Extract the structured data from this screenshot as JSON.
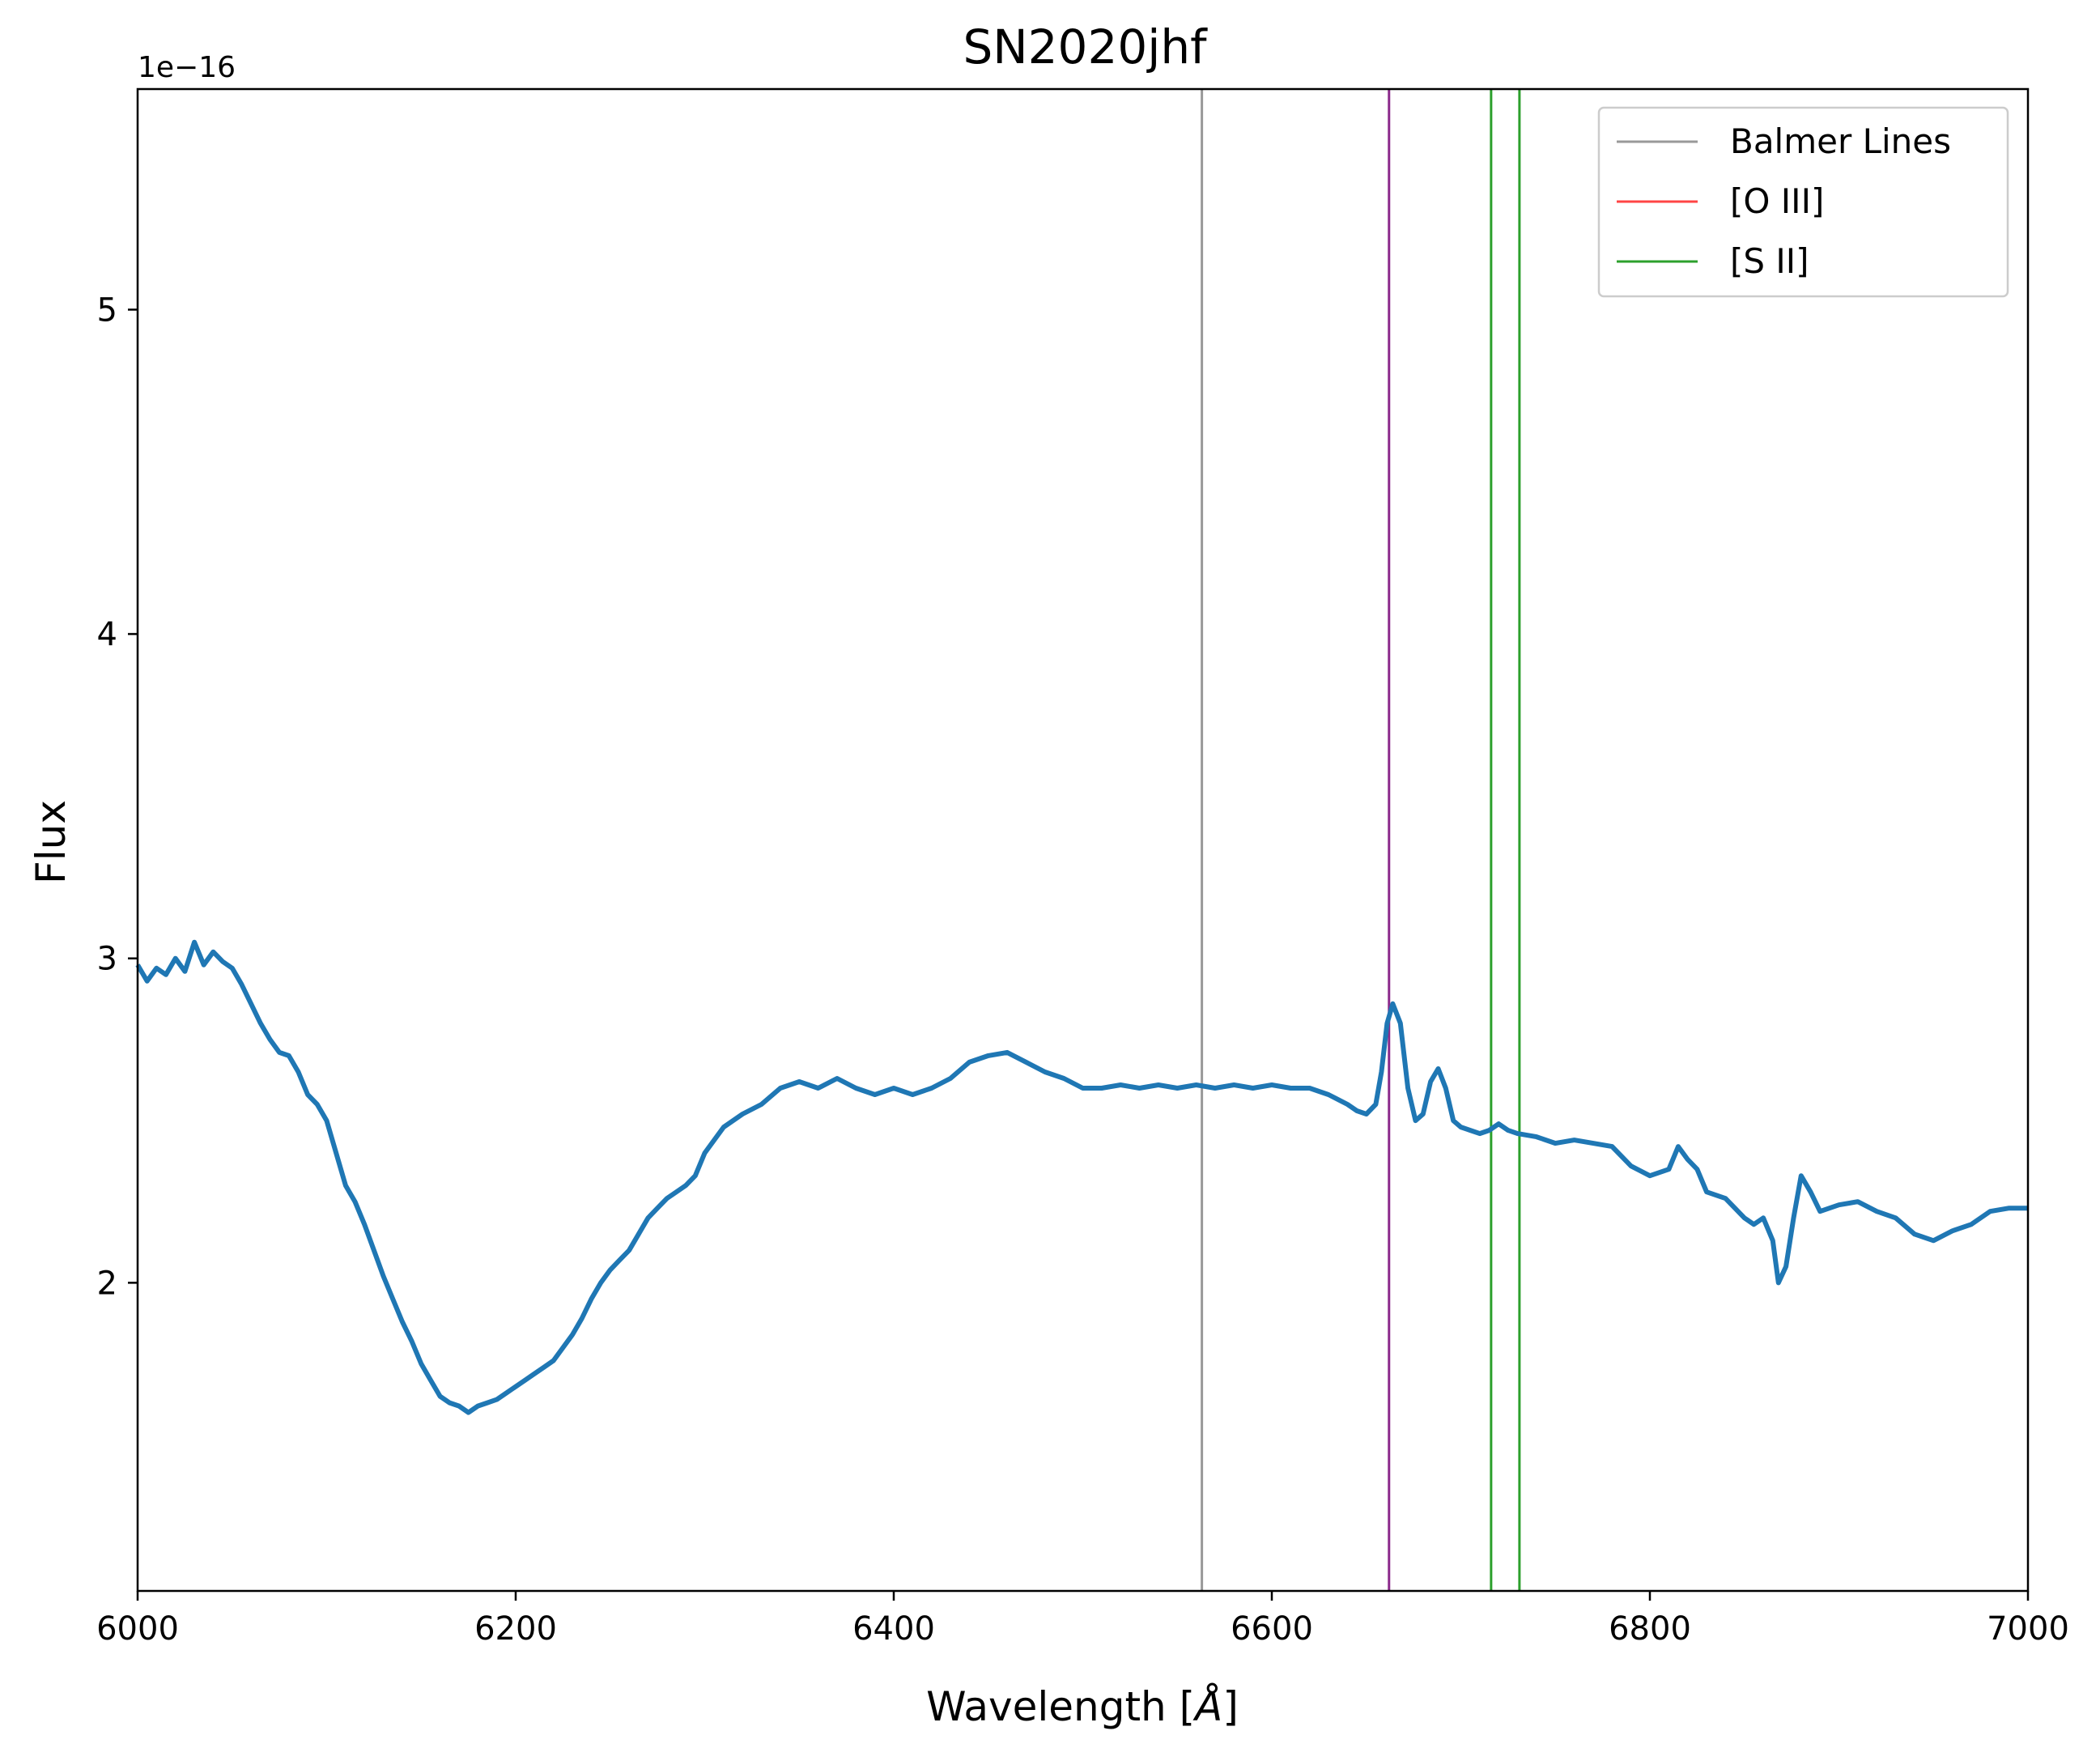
{
  "chart_data": {
    "type": "line",
    "title": "SN2020jhf",
    "xlabel": "Wavelength [",
    "xlabel_unit": "Å",
    "xlabel_close": "]",
    "ylabel": "Flux",
    "y_offset_label": "1e−16",
    "xlim": [
      6000,
      7000
    ],
    "ylim": [
      1.05,
      5.68
    ],
    "x_ticks": [
      6000,
      6200,
      6400,
      6600,
      6800,
      7000
    ],
    "x_tick_labels": [
      "6000",
      "6200",
      "6400",
      "6600",
      "6800",
      "7000"
    ],
    "y_ticks": [
      2,
      3,
      4,
      5
    ],
    "y_tick_labels": [
      "2",
      "3",
      "4",
      "5"
    ],
    "grid": false,
    "legend_position": "top-right",
    "vertical_lines": [
      {
        "x": 6563,
        "color": "#999999",
        "legend": "Balmer Lines"
      },
      {
        "x": 6662,
        "color": "#8b2a8b",
        "legend": ""
      },
      {
        "x": 6716,
        "color": "#2ca02c",
        "legend": ""
      },
      {
        "x": 6731,
        "color": "#2ca02c",
        "legend": ""
      }
    ],
    "legend": [
      {
        "label": "Balmer Lines",
        "color": "#999999"
      },
      {
        "label": "[O III]",
        "color": "#ff4444"
      },
      {
        "label": "[S II]",
        "color": "#2ca02c"
      }
    ],
    "series": [
      {
        "color": "#1f77b4",
        "x": [
          6000,
          6005,
          6010,
          6015,
          6020,
          6025,
          6030,
          6035,
          6040,
          6045,
          6050,
          6055,
          6060,
          6065,
          6070,
          6075,
          6080,
          6085,
          6090,
          6095,
          6100,
          6105,
          6110,
          6115,
          6120,
          6125,
          6130,
          6135,
          6140,
          6145,
          6150,
          6155,
          6160,
          6165,
          6170,
          6175,
          6180,
          6185,
          6190,
          6195,
          6200,
          6205,
          6210,
          6215,
          6220,
          6225,
          6230,
          6235,
          6240,
          6245,
          6250,
          6255,
          6260,
          6265,
          6270,
          6275,
          6280,
          6285,
          6290,
          6295,
          6300,
          6310,
          6320,
          6330,
          6340,
          6350,
          6360,
          6370,
          6380,
          6390,
          6400,
          6410,
          6420,
          6430,
          6440,
          6450,
          6460,
          6470,
          6480,
          6490,
          6500,
          6510,
          6520,
          6530,
          6540,
          6550,
          6560,
          6570,
          6580,
          6590,
          6600,
          6610,
          6620,
          6630,
          6640,
          6645,
          6650,
          6655,
          6658,
          6661,
          6664,
          6668,
          6672,
          6676,
          6680,
          6684,
          6688,
          6692,
          6696,
          6700,
          6705,
          6710,
          6715,
          6720,
          6725,
          6730,
          6740,
          6750,
          6760,
          6770,
          6780,
          6790,
          6800,
          6810,
          6815,
          6820,
          6825,
          6830,
          6840,
          6850,
          6855,
          6860,
          6865,
          6868,
          6872,
          6876,
          6880,
          6885,
          6890,
          6900,
          6910,
          6920,
          6930,
          6940,
          6950,
          6960,
          6970,
          6980,
          6990,
          7000
        ],
        "values": [
          2.98,
          2.93,
          2.97,
          2.95,
          3.0,
          2.96,
          3.05,
          2.98,
          3.02,
          2.99,
          2.97,
          2.92,
          2.86,
          2.8,
          2.75,
          2.71,
          2.7,
          2.65,
          2.58,
          2.55,
          2.5,
          2.4,
          2.3,
          2.25,
          2.18,
          2.1,
          2.02,
          1.95,
          1.88,
          1.82,
          1.75,
          1.7,
          1.65,
          1.63,
          1.62,
          1.6,
          1.62,
          1.63,
          1.64,
          1.66,
          1.68,
          1.7,
          1.72,
          1.74,
          1.76,
          1.8,
          1.84,
          1.89,
          1.95,
          2.0,
          2.04,
          2.07,
          2.1,
          2.15,
          2.2,
          2.23,
          2.26,
          2.28,
          2.3,
          2.33,
          2.4,
          2.48,
          2.52,
          2.55,
          2.6,
          2.62,
          2.6,
          2.63,
          2.6,
          2.58,
          2.6,
          2.58,
          2.6,
          2.63,
          2.68,
          2.7,
          2.71,
          2.68,
          2.65,
          2.63,
          2.6,
          2.6,
          2.61,
          2.6,
          2.61,
          2.6,
          2.61,
          2.6,
          2.61,
          2.6,
          2.61,
          2.6,
          2.6,
          2.58,
          2.55,
          2.53,
          2.52,
          2.55,
          2.65,
          2.8,
          2.86,
          2.8,
          2.6,
          2.5,
          2.52,
          2.62,
          2.66,
          2.6,
          2.5,
          2.48,
          2.47,
          2.46,
          2.47,
          2.49,
          2.47,
          2.46,
          2.45,
          2.43,
          2.44,
          2.43,
          2.42,
          2.36,
          2.33,
          2.35,
          2.42,
          2.38,
          2.35,
          2.28,
          2.26,
          2.2,
          2.18,
          2.2,
          2.13,
          2.0,
          2.05,
          2.2,
          2.33,
          2.28,
          2.22,
          2.24,
          2.25,
          2.22,
          2.2,
          2.15,
          2.13,
          2.16,
          2.18,
          2.22,
          2.23,
          2.23
        ]
      }
    ]
  }
}
